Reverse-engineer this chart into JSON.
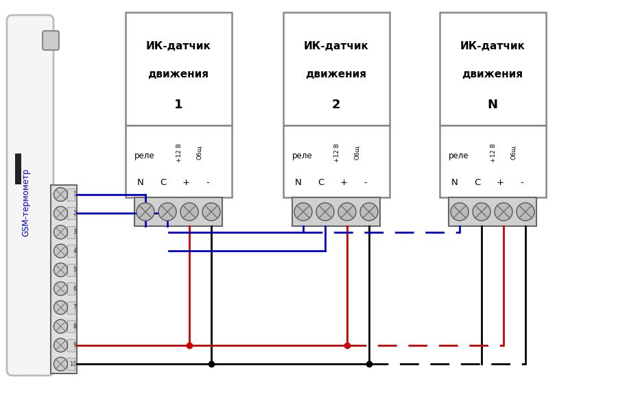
{
  "bg_color": "#ffffff",
  "border_color": "#808080",
  "text_color": "#000000",
  "blue_color": "#0000cd",
  "red_color": "#cc0000",
  "black_color": "#000000",
  "gsm_label": "GSM-термометр",
  "sensor_labels": [
    "1",
    "2",
    "N"
  ],
  "relay_text": "реле",
  "plus12_text": "+12 В",
  "obsh_text": "Общ",
  "nc_text_n": "N",
  "nc_text_c": "C",
  "nc_text_plus": "+",
  "nc_text_minus": "-",
  "ik_line1": "ИК-датчик",
  "ik_line2": "движения"
}
